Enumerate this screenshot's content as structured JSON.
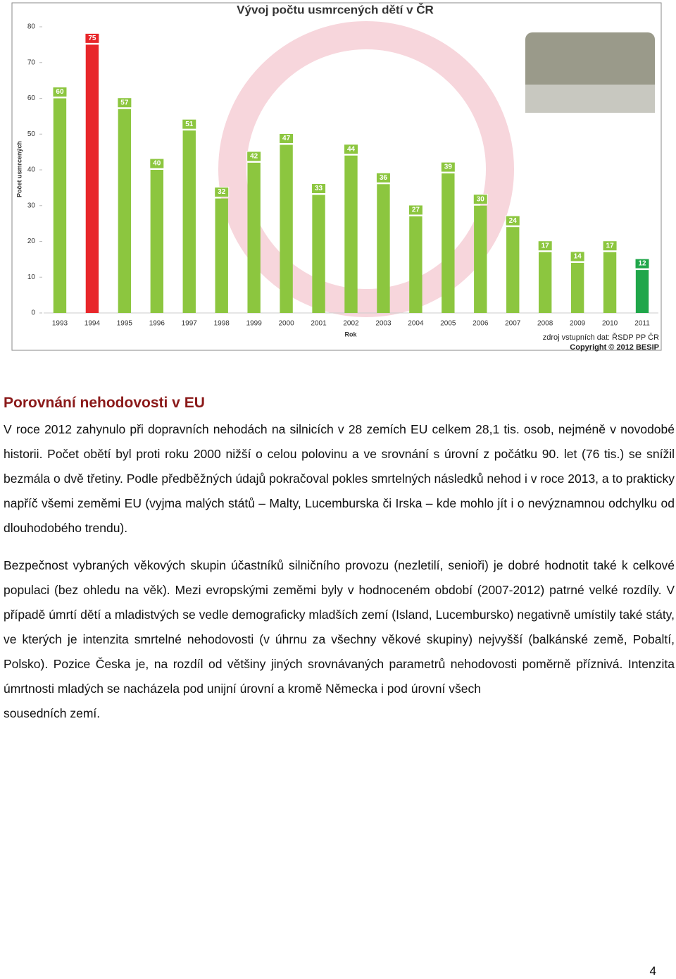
{
  "chart_data": {
    "type": "bar",
    "title": "Vývoj počtu usmrcených dětí v ČR",
    "y_label": "Počet usmrcených",
    "x_label": "Rok",
    "categories": [
      "1993",
      "1994",
      "1995",
      "1996",
      "1997",
      "1998",
      "1999",
      "2000",
      "2001",
      "2002",
      "2003",
      "2004",
      "2005",
      "2006",
      "2007",
      "2008",
      "2009",
      "2010",
      "2011"
    ],
    "values": [
      60,
      75,
      57,
      40,
      51,
      32,
      42,
      47,
      33,
      44,
      36,
      27,
      39,
      30,
      24,
      17,
      14,
      17,
      12
    ],
    "colors": [
      "#8cc63f",
      "#e8262a",
      "#8cc63f",
      "#8cc63f",
      "#8cc63f",
      "#8cc63f",
      "#8cc63f",
      "#8cc63f",
      "#8cc63f",
      "#8cc63f",
      "#8cc63f",
      "#8cc63f",
      "#8cc63f",
      "#8cc63f",
      "#8cc63f",
      "#8cc63f",
      "#8cc63f",
      "#8cc63f",
      "#1fa64a"
    ],
    "ylim": [
      0,
      80
    ],
    "yticks": [
      0,
      10,
      20,
      30,
      40,
      50,
      60,
      70,
      80
    ],
    "source": "zdroj vstupních dat: ŘSDP PP ČR",
    "copyright": "Copyright © 2012 BESIP"
  },
  "section": {
    "heading": "Porovnání nehodovosti v EU",
    "paragraphs": [
      "V roce 2012 zahynulo při dopravních nehodách na silnicích v 28 zemích EU celkem 28,1 tis. osob, nejméně v novodobé historii. Počet obětí byl proti roku 2000 nižší o celou polovinu a ve srovnání s úrovní z počátku 90. let (76 tis.) se snížil bezmála o dvě třetiny. Podle předběžných údajů pokračoval pokles smrtelných následků nehod i v roce 2013, a to prakticky napříč všemi zeměmi EU (vyjma malých států – Malty, Lucemburska či Irska – kde mohlo jít i o nevýznamnou odchylku od dlouhodobého trendu).",
      "Bezpečnost vybraných věkových skupin účastníků silničního provozu (nezletilí, senioři) je dobré hodnotit také k celkové populaci (bez ohledu na věk). Mezi evropskými zeměmi byly v hodnoceném období (2007-2012) patrné velké rozdíly. V případě úmrtí dětí a mladistvých se vedle demograficky mladších zemí (Island, Lucembursko) negativně umístily také státy, ve kterých je intenzita smrtelné nehodovosti (v úhrnu za všechny věkové skupiny) nejvyšší (balkánské země, Pobaltí, Polsko). Pozice Česka je, na rozdíl od většiny jiných srovnávaných parametrů nehodovosti poměrně příznivá. Intenzita úmrtnosti mladých se nacházela pod unijní úrovní a kromě Německa i pod úrovní všech",
      "sousedních zemí."
    ]
  },
  "page_number": "4"
}
